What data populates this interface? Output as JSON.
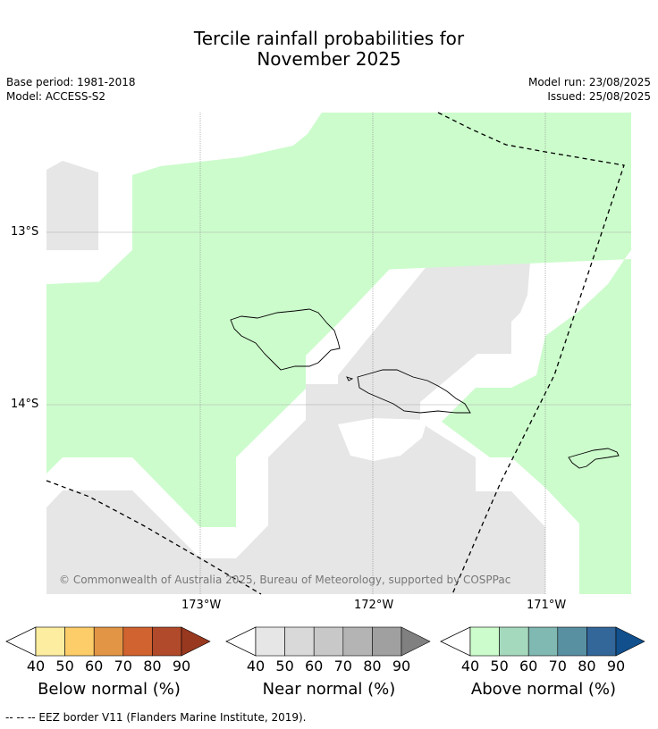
{
  "title": {
    "line1": "Tercile rainfall probabilities for",
    "line2": "November 2025"
  },
  "meta": {
    "base_period": "Base period: 1981-2018",
    "model": "Model: ACCESS-S2",
    "model_run": "Model run: 23/08/2025",
    "issued": "Issued: 25/08/2025"
  },
  "map": {
    "lat_labels": [
      "13°S",
      "14°S"
    ],
    "lon_labels": [
      "173°W",
      "172°W",
      "171°W"
    ],
    "copyright": "© Commonwealth of Australia 2025, Bureau of Meteorology, supported by COSPPac",
    "colors": {
      "above_40": "#ccfccc",
      "near_40": "#e6e6e6",
      "land_outline": "#000000",
      "eez": "#000000"
    }
  },
  "legends": [
    {
      "title": "Below normal (%)",
      "ticks": [
        "40",
        "50",
        "60",
        "70",
        "80",
        "90"
      ],
      "colors": [
        "#fdeda0",
        "#fdcd6a",
        "#e19545",
        "#d0632f",
        "#b04a2a",
        "#98381f"
      ]
    },
    {
      "title": "Near normal (%)",
      "ticks": [
        "40",
        "50",
        "60",
        "70",
        "80",
        "90"
      ],
      "colors": [
        "#e6e6e6",
        "#d9d9d9",
        "#c8c8c8",
        "#b4b4b4",
        "#a0a0a0",
        "#808080"
      ]
    },
    {
      "title": "Above normal (%)",
      "ticks": [
        "40",
        "50",
        "60",
        "70",
        "80",
        "90"
      ],
      "colors": [
        "#ccfccc",
        "#a5d9bd",
        "#80b8b2",
        "#5890a2",
        "#336699",
        "#11508d"
      ]
    }
  ],
  "footer": "--  --  -- EEZ border V11 (Flanders Marine Institute, 2019)."
}
